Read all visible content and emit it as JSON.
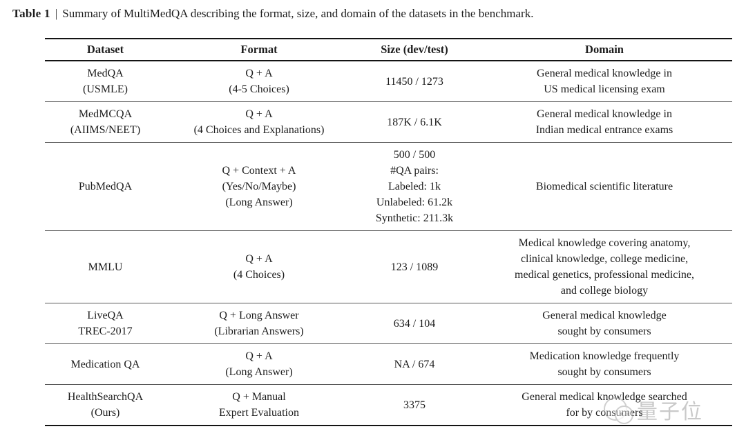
{
  "title": {
    "label": "Table 1",
    "separator": "|",
    "text": "Summary of MultiMedQA describing the format, size, and domain of the datasets in the benchmark."
  },
  "table": {
    "headers": [
      "Dataset",
      "Format",
      "Size (dev/test)",
      "Domain"
    ],
    "rows": [
      {
        "dataset": [
          "MedQA",
          "(USMLE)"
        ],
        "format": [
          "Q + A",
          "(4-5 Choices)"
        ],
        "size": [
          "11450 / 1273"
        ],
        "domain": [
          "General medical knowledge in",
          "US medical licensing exam"
        ]
      },
      {
        "dataset": [
          "MedMCQA",
          "(AIIMS/NEET)"
        ],
        "format": [
          "Q + A",
          "(4 Choices and Explanations)"
        ],
        "size": [
          "187K / 6.1K"
        ],
        "domain": [
          "General medical knowledge in",
          "Indian medical entrance exams"
        ]
      },
      {
        "dataset": [
          "PubMedQA"
        ],
        "format": [
          "Q + Context + A",
          "(Yes/No/Maybe)",
          "(Long Answer)"
        ],
        "size": [
          "500 / 500",
          "#QA pairs:",
          "Labeled: 1k",
          "Unlabeled: 61.2k",
          "Synthetic: 211.3k"
        ],
        "domain": [
          "Biomedical scientific literature"
        ]
      },
      {
        "dataset": [
          "MMLU"
        ],
        "format": [
          "Q + A",
          "(4 Choices)"
        ],
        "size": [
          "123 / 1089"
        ],
        "domain": [
          "Medical knowledge covering anatomy,",
          "clinical knowledge, college medicine,",
          "medical genetics, professional medicine,",
          "and college biology"
        ]
      },
      {
        "dataset": [
          "LiveQA",
          "TREC-2017"
        ],
        "format": [
          "Q + Long Answer",
          "(Librarian Answers)"
        ],
        "size": [
          "634 / 104"
        ],
        "domain": [
          "General medical knowledge",
          "sought by consumers"
        ]
      },
      {
        "dataset": [
          "Medication QA"
        ],
        "format": [
          "Q + A",
          "(Long Answer)"
        ],
        "size": [
          "NA / 674"
        ],
        "domain": [
          "Medication knowledge frequently",
          "sought by consumers"
        ]
      },
      {
        "dataset": [
          "HealthSearchQA",
          "(Ours)"
        ],
        "format": [
          "Q + Manual",
          "Expert Evaluation"
        ],
        "size": [
          "3375"
        ],
        "domain": [
          "General medical knowledge searched",
          "for by consumers"
        ]
      }
    ]
  },
  "watermark": {
    "text": "量子位"
  }
}
